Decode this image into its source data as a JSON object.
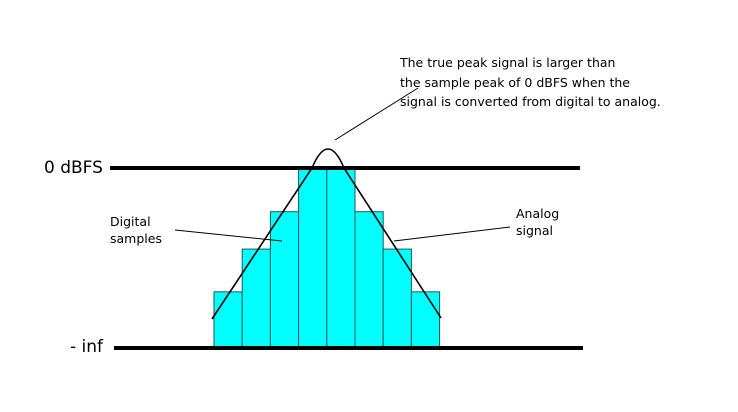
{
  "levels": {
    "top": "0 dBFS",
    "bottom": "- inf"
  },
  "labels": {
    "digital": [
      "Digital",
      "samples"
    ],
    "analog": [
      "Analog",
      "signal"
    ],
    "note": [
      "The true peak signal is larger than",
      "the sample peak of 0 dBFS when the",
      "signal is converted from digital to analog."
    ]
  },
  "sample_levels_fraction_of_full_scale": [
    0.31,
    0.55,
    0.76,
    1,
    1,
    0.76,
    0.55,
    0.31
  ],
  "colors": {
    "sample_fill": "#00FFFF",
    "sample_stroke": "#1a5a5a",
    "lines": "#000000"
  }
}
